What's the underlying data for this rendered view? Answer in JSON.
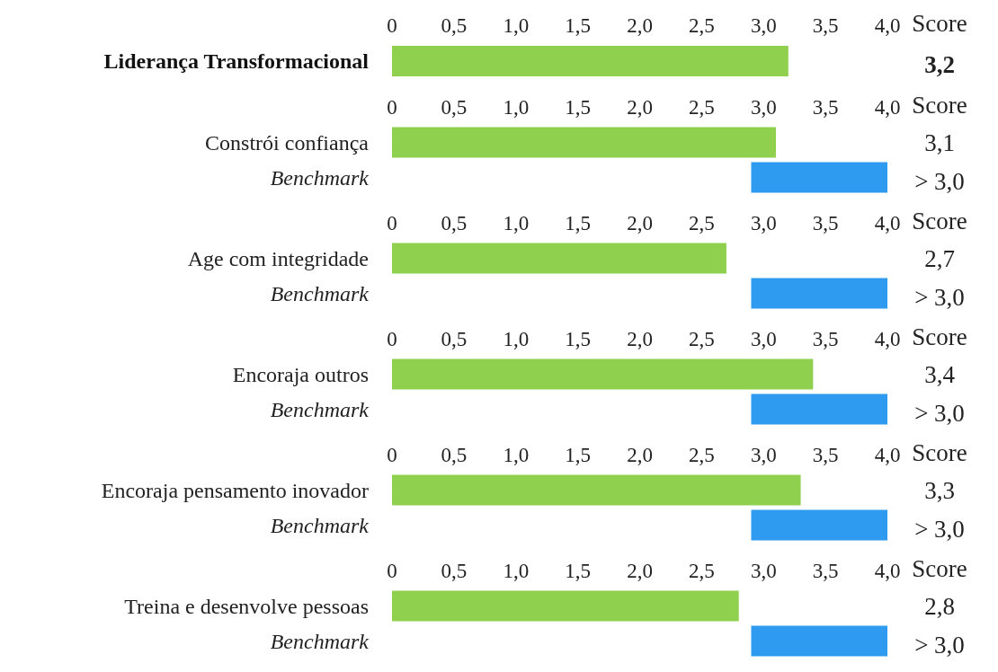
{
  "chart_data": [
    {
      "type": "bar",
      "orientation": "horizontal",
      "categories": [
        "Liderança Transformacional"
      ],
      "base": [
        0
      ],
      "values": [
        3.2
      ],
      "colors": [
        "#8fd14f"
      ],
      "xlim": [
        0,
        4
      ],
      "xticks": [
        {
          "value": 0,
          "label": "0"
        },
        {
          "value": 0.5,
          "label": "0,5"
        },
        {
          "value": 1,
          "label": "1,0"
        },
        {
          "value": 1.5,
          "label": "1,5"
        },
        {
          "value": 2,
          "label": "2,0"
        },
        {
          "value": 2.5,
          "label": "2,5"
        },
        {
          "value": 3,
          "label": "3,0"
        },
        {
          "value": 3.5,
          "label": "3,5"
        },
        {
          "value": 4,
          "label": "4,0"
        }
      ],
      "annotations": [
        "Score",
        "3,2"
      ]
    },
    {
      "type": "bar",
      "orientation": "horizontal",
      "categories": [
        "Constrói confiança",
        "Benchmark"
      ],
      "base": [
        0,
        2.9
      ],
      "values": [
        3.1,
        1.1
      ],
      "colors": [
        "#8fd14f",
        "#2f9bf0"
      ],
      "xlim": [
        0,
        4
      ],
      "xticks": [
        {
          "value": 0,
          "label": "0"
        },
        {
          "value": 0.5,
          "label": "0,5"
        },
        {
          "value": 1,
          "label": "1,0"
        },
        {
          "value": 1.5,
          "label": "1,5"
        },
        {
          "value": 2,
          "label": "2,0"
        },
        {
          "value": 2.5,
          "label": "2,5"
        },
        {
          "value": 3,
          "label": "3,0"
        },
        {
          "value": 3.5,
          "label": "3,5"
        },
        {
          "value": 4,
          "label": "4,0"
        }
      ],
      "annotations": [
        "Score",
        "3,1",
        "> 3,0"
      ]
    },
    {
      "type": "bar",
      "orientation": "horizontal",
      "categories": [
        "Age com integridade",
        "Benchmark"
      ],
      "base": [
        0,
        2.9
      ],
      "values": [
        2.7,
        1.1
      ],
      "colors": [
        "#8fd14f",
        "#2f9bf0"
      ],
      "xlim": [
        0,
        4
      ],
      "xticks": [
        {
          "value": 0,
          "label": "0"
        },
        {
          "value": 0.5,
          "label": "0,5"
        },
        {
          "value": 1,
          "label": "1,0"
        },
        {
          "value": 1.5,
          "label": "1,5"
        },
        {
          "value": 2,
          "label": "2,0"
        },
        {
          "value": 2.5,
          "label": "2,5"
        },
        {
          "value": 3,
          "label": "3,0"
        },
        {
          "value": 3.5,
          "label": "3,5"
        },
        {
          "value": 4,
          "label": "4,0"
        }
      ],
      "annotations": [
        "Score",
        "2,7",
        "> 3,0"
      ]
    },
    {
      "type": "bar",
      "orientation": "horizontal",
      "categories": [
        "Encoraja outros",
        "Benchmark"
      ],
      "base": [
        0,
        2.9
      ],
      "values": [
        3.4,
        1.1
      ],
      "colors": [
        "#8fd14f",
        "#2f9bf0"
      ],
      "xlim": [
        0,
        4
      ],
      "xticks": [
        {
          "value": 0,
          "label": "0"
        },
        {
          "value": 0.5,
          "label": "0,5"
        },
        {
          "value": 1,
          "label": "1,0"
        },
        {
          "value": 1.5,
          "label": "1,5"
        },
        {
          "value": 2,
          "label": "2,0"
        },
        {
          "value": 2.5,
          "label": "2,5"
        },
        {
          "value": 3,
          "label": "3,0"
        },
        {
          "value": 3.5,
          "label": "3,5"
        },
        {
          "value": 4,
          "label": "4,0"
        }
      ],
      "annotations": [
        "Score",
        "3,4",
        "> 3,0"
      ]
    },
    {
      "type": "bar",
      "orientation": "horizontal",
      "categories": [
        "Encoraja pensamento inovador",
        "Benchmark"
      ],
      "base": [
        0,
        2.9
      ],
      "values": [
        3.3,
        1.1
      ],
      "colors": [
        "#8fd14f",
        "#2f9bf0"
      ],
      "xlim": [
        0,
        4
      ],
      "xticks": [
        {
          "value": 0,
          "label": "0"
        },
        {
          "value": 0.5,
          "label": "0,5"
        },
        {
          "value": 1,
          "label": "1,0"
        },
        {
          "value": 1.5,
          "label": "1,5"
        },
        {
          "value": 2,
          "label": "2,0"
        },
        {
          "value": 2.5,
          "label": "2,5"
        },
        {
          "value": 3,
          "label": "3,0"
        },
        {
          "value": 3.5,
          "label": "3,5"
        },
        {
          "value": 4,
          "label": "4,0"
        }
      ],
      "annotations": [
        "Score",
        "3,3",
        "> 3,0"
      ]
    },
    {
      "type": "bar",
      "orientation": "horizontal",
      "categories": [
        "Treina e desenvolve pessoas",
        "Benchmark"
      ],
      "base": [
        0,
        2.9
      ],
      "values": [
        2.8,
        1.1
      ],
      "colors": [
        "#8fd14f",
        "#2f9bf0"
      ],
      "xlim": [
        0,
        4
      ],
      "xticks": [
        {
          "value": 0,
          "label": "0"
        },
        {
          "value": 0.5,
          "label": "0,5"
        },
        {
          "value": 1,
          "label": "1,0"
        },
        {
          "value": 1.5,
          "label": "1,5"
        },
        {
          "value": 2,
          "label": "2,0"
        },
        {
          "value": 2.5,
          "label": "2,5"
        },
        {
          "value": 3,
          "label": "3,0"
        },
        {
          "value": 3.5,
          "label": "3,5"
        },
        {
          "value": 4,
          "label": "4,0"
        }
      ],
      "annotations": [
        "Score",
        "2,8",
        "> 3,0"
      ]
    }
  ]
}
